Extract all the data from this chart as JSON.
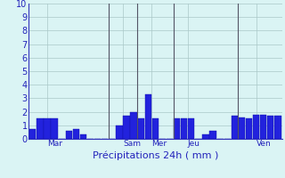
{
  "values": [
    0.7,
    1.5,
    1.5,
    1.5,
    0.0,
    0.6,
    0.7,
    0.3,
    0.0,
    0.0,
    0.0,
    0.0,
    1.0,
    1.7,
    2.0,
    1.5,
    3.3,
    1.5,
    0.0,
    0.0,
    1.5,
    1.5,
    1.5,
    0.0,
    0.3,
    0.6,
    0.0,
    0.0,
    1.7,
    1.6,
    1.5,
    1.8,
    1.8,
    1.7,
    1.7
  ],
  "day_labels": [
    "Mar",
    "Sam",
    "Mer",
    "Jeu",
    "Ven"
  ],
  "day_tick_x": [
    2.0,
    12.5,
    16.5,
    21.5,
    31.0
  ],
  "xlabel": "Précipitations 24h ( mm )",
  "ylim": [
    0,
    10
  ],
  "yticks": [
    0,
    1,
    2,
    3,
    4,
    5,
    6,
    7,
    8,
    9,
    10
  ],
  "bar_color": "#2222dd",
  "bar_edge_color": "#1111aa",
  "bg_color": "#daf4f4",
  "grid_color": "#aac8c8",
  "axis_color": "#3333bb",
  "tick_color": "#2222bb",
  "label_color": "#2222bb",
  "vline_positions": [
    10.5,
    14.5,
    19.5,
    28.5
  ],
  "vline_color": "#555566"
}
